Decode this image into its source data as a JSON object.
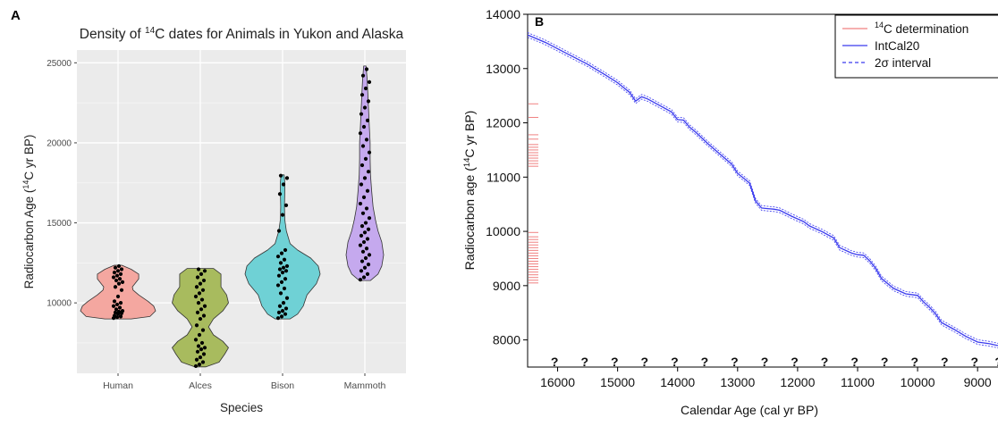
{
  "chart_data": [
    {
      "panel_label": "A",
      "type": "violin",
      "title_prefix": "Density of ",
      "title_sup": "14",
      "title_suffix": "C dates for Animals in Yukon and Alaska",
      "xlabel": "Species",
      "ylabel_prefix": "Radiocarbon Age (",
      "ylabel_sup": "14",
      "ylabel_suffix": "C yr BP)",
      "ylim": [
        5600,
        25800
      ],
      "yticks": [
        10000,
        15000,
        20000,
        25000
      ],
      "grid": true,
      "categories": [
        "Human",
        "Alces",
        "Bison",
        "Mammoth"
      ],
      "series": [
        {
          "category": "Human",
          "color": "#f4a7a0",
          "range": [
            9000,
            12350
          ],
          "density": [
            [
              9000,
              0.35
            ],
            [
              9150,
              0.85
            ],
            [
              9500,
              1.0
            ],
            [
              9800,
              0.95
            ],
            [
              10100,
              0.8
            ],
            [
              10500,
              0.55
            ],
            [
              10800,
              0.4
            ],
            [
              11000,
              0.38
            ],
            [
              11200,
              0.45
            ],
            [
              11500,
              0.55
            ],
            [
              11800,
              0.55
            ],
            [
              12100,
              0.35
            ],
            [
              12350,
              0.1
            ]
          ],
          "points": [
            9050,
            9100,
            9150,
            9200,
            9300,
            9350,
            9400,
            9450,
            9500,
            9600,
            9700,
            9800,
            9900,
            10000,
            10100,
            10400,
            10800,
            11000,
            11200,
            11300,
            11400,
            11500,
            11600,
            11700,
            11800,
            11900,
            12000,
            12100,
            12200,
            12300
          ]
        },
        {
          "category": "Alces",
          "color": "#a8bb5e",
          "range": [
            6000,
            12150
          ],
          "density": [
            [
              6000,
              0.15
            ],
            [
              6300,
              0.5
            ],
            [
              6800,
              0.65
            ],
            [
              7200,
              0.75
            ],
            [
              7600,
              0.6
            ],
            [
              8000,
              0.35
            ],
            [
              8500,
              0.22
            ],
            [
              9000,
              0.35
            ],
            [
              9500,
              0.6
            ],
            [
              10000,
              0.75
            ],
            [
              10500,
              0.7
            ],
            [
              11000,
              0.55
            ],
            [
              11500,
              0.55
            ],
            [
              11800,
              0.55
            ],
            [
              12150,
              0.35
            ]
          ],
          "points": [
            6050,
            6150,
            6300,
            6450,
            6600,
            6800,
            6950,
            7100,
            7200,
            7300,
            7500,
            7700,
            8000,
            8300,
            8600,
            9000,
            9200,
            9400,
            9600,
            9800,
            10000,
            10200,
            10400,
            10600,
            10800,
            11000,
            11200,
            11400,
            11600,
            11800,
            12000,
            12100
          ]
        },
        {
          "category": "Bison",
          "color": "#6fd1d5",
          "range": [
            9000,
            18000
          ],
          "density": [
            [
              9000,
              0.2
            ],
            [
              9300,
              0.4
            ],
            [
              9800,
              0.55
            ],
            [
              10500,
              0.65
            ],
            [
              11200,
              0.9
            ],
            [
              11800,
              1.0
            ],
            [
              12300,
              0.95
            ],
            [
              12800,
              0.75
            ],
            [
              13300,
              0.4
            ],
            [
              13700,
              0.2
            ],
            [
              14500,
              0.1
            ],
            [
              15200,
              0.06
            ],
            [
              16000,
              0.05
            ],
            [
              17000,
              0.06
            ],
            [
              17500,
              0.06
            ],
            [
              18000,
              0.04
            ]
          ],
          "points": [
            9050,
            9150,
            9300,
            9400,
            9500,
            9650,
            9800,
            10000,
            10300,
            10600,
            10900,
            11100,
            11300,
            11500,
            11700,
            11900,
            12000,
            12100,
            12200,
            12300,
            12500,
            12700,
            12900,
            13100,
            13300,
            14500,
            15500,
            16100,
            16800,
            17400,
            17800,
            17950
          ]
        },
        {
          "category": "Mammoth",
          "color": "#c5a9ee",
          "range": [
            11400,
            24800
          ],
          "density": [
            [
              11400,
              0.15
            ],
            [
              11800,
              0.35
            ],
            [
              12300,
              0.45
            ],
            [
              13000,
              0.5
            ],
            [
              13800,
              0.45
            ],
            [
              14500,
              0.35
            ],
            [
              15200,
              0.28
            ],
            [
              16000,
              0.22
            ],
            [
              17000,
              0.18
            ],
            [
              18000,
              0.15
            ],
            [
              19000,
              0.14
            ],
            [
              20000,
              0.14
            ],
            [
              21000,
              0.12
            ],
            [
              22000,
              0.1
            ],
            [
              23000,
              0.08
            ],
            [
              24000,
              0.06
            ],
            [
              24800,
              0.03
            ]
          ],
          "points": [
            11450,
            11600,
            11800,
            12000,
            12200,
            12400,
            12600,
            12800,
            13000,
            13200,
            13400,
            13600,
            13800,
            14000,
            14200,
            14400,
            14600,
            14800,
            15000,
            15300,
            15600,
            15900,
            16200,
            16600,
            17000,
            17400,
            17800,
            18200,
            18600,
            19000,
            19400,
            19800,
            20200,
            20600,
            21000,
            21400,
            21800,
            22200,
            22600,
            23000,
            23400,
            23800,
            24200,
            24600
          ]
        }
      ]
    },
    {
      "panel_label": "B",
      "type": "line",
      "xlabel": "Calendar Age (cal yr BP)",
      "ylabel_prefix": "Radiocarbon age (",
      "ylabel_sup": "14",
      "ylabel_suffix": "C yr BP)",
      "xlim": [
        16500,
        8600
      ],
      "ylim": [
        7500,
        14000
      ],
      "xticks": [
        16000,
        15000,
        14000,
        13000,
        12000,
        11000,
        10000,
        9000
      ],
      "yticks": [
        8000,
        9000,
        10000,
        11000,
        12000,
        13000,
        14000
      ],
      "legend_position": "top-right",
      "legend": [
        {
          "label_sup": "14",
          "label": "C determination",
          "color": "#f08080",
          "style": "solid"
        },
        {
          "label_sup": "",
          "label": "IntCal20",
          "color": "#3a3aee",
          "style": "solid"
        },
        {
          "label_sup": "",
          "label": "2σ interval",
          "color": "#3a3aee",
          "style": "dashed"
        }
      ],
      "intcal_curve": {
        "x": [
          16500,
          16200,
          15800,
          15500,
          15200,
          15000,
          14800,
          14700,
          14600,
          14500,
          14300,
          14100,
          14000,
          13900,
          13800,
          13700,
          13500,
          13300,
          13100,
          13000,
          12900,
          12800,
          12700,
          12600,
          12500,
          12400,
          12300,
          12100,
          11900,
          11800,
          11600,
          11400,
          11300,
          11100,
          11000,
          10900,
          10800,
          10700,
          10600,
          10400,
          10200,
          10000,
          9900,
          9800,
          9700,
          9600,
          9400,
          9200,
          9000,
          8800,
          8600
        ],
        "y": [
          13620,
          13480,
          13250,
          13080,
          12880,
          12740,
          12560,
          12400,
          12480,
          12440,
          12320,
          12200,
          12060,
          12050,
          11920,
          11830,
          11620,
          11430,
          11240,
          11070,
          10980,
          10890,
          10560,
          10430,
          10420,
          10410,
          10390,
          10280,
          10180,
          10100,
          10000,
          9880,
          9700,
          9600,
          9570,
          9560,
          9460,
          9320,
          9130,
          8950,
          8850,
          8820,
          8700,
          8600,
          8480,
          8320,
          8200,
          8070,
          7960,
          7930,
          7880
        ]
      },
      "c14_determinations": [
        12350,
        12100,
        11780,
        11700,
        11600,
        11550,
        11500,
        11450,
        11400,
        11350,
        11300,
        11250,
        11200,
        9980,
        9900,
        9850,
        9800,
        9750,
        9700,
        9650,
        9600,
        9550,
        9500,
        9450,
        9400,
        9350,
        9300,
        9250,
        9200,
        9150,
        9100,
        9050
      ],
      "unknown_markers": {
        "symbol": "?",
        "y": 7600,
        "x": [
          16050,
          15550,
          15050,
          14550,
          14050,
          13550,
          13050,
          12550,
          12050,
          11550,
          11050,
          10550,
          10050,
          9550,
          9050,
          8650
        ]
      }
    }
  ]
}
